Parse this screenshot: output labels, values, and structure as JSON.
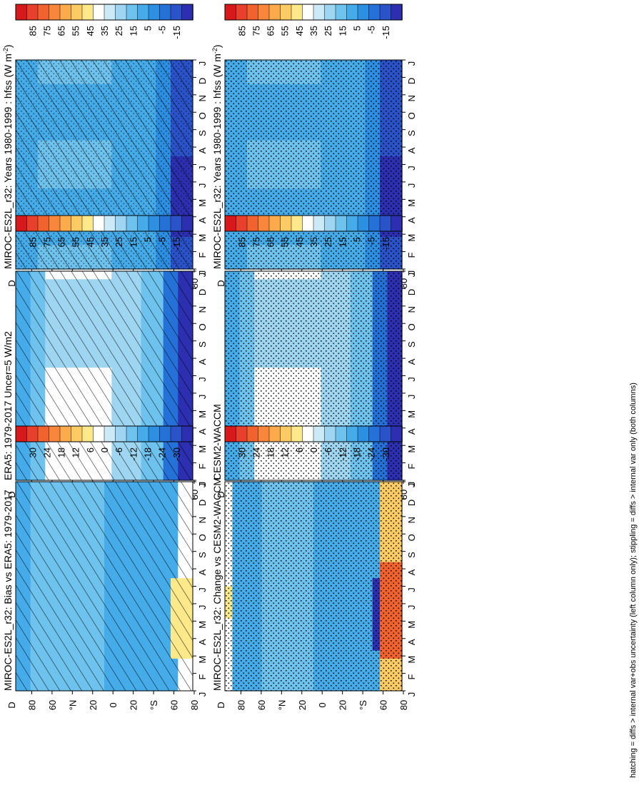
{
  "chart_data": [
    {
      "type": "heatmap",
      "title": "MIROC-ES2L_r32: Years 1980-1999 : hfss (W m",
      "title_sup": "-2",
      "title_close": ")",
      "x_ticks": [
        "J",
        "F",
        "M",
        "A",
        "M",
        "J",
        "J",
        "A",
        "S",
        "O",
        "N",
        "D",
        "J"
      ],
      "y_ticks": [
        "D",
        "80",
        "60",
        "°N",
        "20",
        "0",
        "20",
        "°S",
        "60",
        "80"
      ],
      "colorbar": {
        "labels": [
          "85",
          "75",
          "65",
          "55",
          "45",
          "35",
          "25",
          "15",
          "5",
          "-5",
          "-15"
        ],
        "colors": [
          "#d7191c",
          "#e8402c",
          "#f2622f",
          "#f9873b",
          "#fbaa4c",
          "#fdcb63",
          "#fde98a",
          "#ffffff",
          "#cbe9f7",
          "#9ed6f2",
          "#6ec2ee",
          "#45abe9",
          "#2d8fe2",
          "#2471d8",
          "#2a52c9",
          "#2b2fb0"
        ]
      },
      "overlay": "hatch+stipple",
      "field": "model"
    },
    {
      "type": "heatmap",
      "title": "MIROC-ES2L_r32: Years 1980-1999 : hfss (W m",
      "title_sup": "-2",
      "title_close": ")",
      "x_ticks": [
        "J",
        "F",
        "M",
        "A",
        "M",
        "J",
        "J",
        "A",
        "S",
        "O",
        "N",
        "D",
        "J"
      ],
      "y_ticks": [
        "D",
        "80",
        "60",
        "°N",
        "20",
        "0",
        "20",
        "°S",
        "60",
        "80"
      ],
      "colorbar": {
        "labels": [
          "85",
          "75",
          "65",
          "55",
          "45",
          "35",
          "25",
          "15",
          "5",
          "-5",
          "-15"
        ],
        "colors": [
          "#d7191c",
          "#e8402c",
          "#f2622f",
          "#f9873b",
          "#fbaa4c",
          "#fdcb63",
          "#fde98a",
          "#ffffff",
          "#cbe9f7",
          "#9ed6f2",
          "#6ec2ee",
          "#45abe9",
          "#2d8fe2",
          "#2471d8",
          "#2a52c9",
          "#2b2fb0"
        ]
      },
      "overlay": "stipple",
      "field": "model"
    },
    {
      "type": "heatmap",
      "title": "ERA5: 1979-2017 Uncer=5 W/m2",
      "title_sup": "",
      "title_close": "",
      "x_ticks": [
        "J",
        "F",
        "M",
        "A",
        "M",
        "J",
        "J",
        "A",
        "S",
        "O",
        "N",
        "D",
        "J"
      ],
      "y_ticks": [
        "D",
        "80",
        "60",
        "°N",
        "20",
        "0",
        "20",
        "°S",
        "60",
        "80"
      ],
      "colorbar": {
        "labels": [
          "85",
          "75",
          "65",
          "55",
          "45",
          "35",
          "25",
          "15",
          "5",
          "-5",
          "-15"
        ],
        "colors": [
          "#d7191c",
          "#e8402c",
          "#f2622f",
          "#f9873b",
          "#fbaa4c",
          "#fdcb63",
          "#fde98a",
          "#ffffff",
          "#cbe9f7",
          "#9ed6f2",
          "#6ec2ee",
          "#45abe9",
          "#2d8fe2",
          "#2471d8",
          "#2a52c9",
          "#2b2fb0"
        ]
      },
      "overlay": "hatch",
      "field": "obs"
    },
    {
      "type": "heatmap",
      "title": "CESM2-WACCM",
      "title_sup": "",
      "title_close": "",
      "x_ticks": [
        "J",
        "F",
        "M",
        "A",
        "M",
        "J",
        "J",
        "A",
        "S",
        "O",
        "N",
        "D",
        "J"
      ],
      "y_ticks": [
        "D",
        "80",
        "60",
        "°N",
        "20",
        "0",
        "20",
        "°S",
        "60",
        "80"
      ],
      "colorbar": {
        "labels": [
          "85",
          "75",
          "65",
          "55",
          "45",
          "35",
          "25",
          "15",
          "5",
          "-5",
          "-15"
        ],
        "colors": [
          "#d7191c",
          "#e8402c",
          "#f2622f",
          "#f9873b",
          "#fbaa4c",
          "#fdcb63",
          "#fde98a",
          "#ffffff",
          "#cbe9f7",
          "#9ed6f2",
          "#6ec2ee",
          "#45abe9",
          "#2d8fe2",
          "#2471d8",
          "#2a52c9",
          "#2b2fb0"
        ]
      },
      "overlay": "stipple",
      "field": "obs"
    },
    {
      "type": "heatmap",
      "title": "MIROC-ES2L_r32: Bias vs ERA5: 1979-2017",
      "title_sup": "",
      "title_close": "",
      "x_ticks": [
        "J",
        "F",
        "M",
        "A",
        "M",
        "J",
        "J",
        "A",
        "S",
        "O",
        "N",
        "D",
        "J"
      ],
      "y_ticks": [
        "D",
        "80",
        "60",
        "°N",
        "20",
        "0",
        "20",
        "°S",
        "60",
        "80"
      ],
      "colorbar": {
        "labels": [
          "30",
          "24",
          "18",
          "12",
          "6",
          "0",
          "-6",
          "-12",
          "-18",
          "-24",
          "-30"
        ],
        "colors": [
          "#d7191c",
          "#e8402c",
          "#f2622f",
          "#f9873b",
          "#fbaa4c",
          "#fdcb63",
          "#fde98a",
          "#ffffff",
          "#cbe9f7",
          "#9ed6f2",
          "#6ec2ee",
          "#45abe9",
          "#2d8fe2",
          "#2471d8",
          "#2a52c9",
          "#2b2fb0"
        ]
      },
      "overlay": "hatch",
      "field": "diff"
    },
    {
      "type": "heatmap",
      "title": "MIROC-ES2L_r32: Change vs CESM2-WACCM",
      "title_sup": "",
      "title_close": "",
      "x_ticks": [
        "J",
        "F",
        "M",
        "A",
        "M",
        "J",
        "J",
        "A",
        "S",
        "O",
        "N",
        "D",
        "J"
      ],
      "y_ticks": [
        "D",
        "80",
        "60",
        "°N",
        "20",
        "0",
        "20",
        "°S",
        "60",
        "80"
      ],
      "colorbar": {
        "labels": [
          "30",
          "24",
          "18",
          "12",
          "6",
          "0",
          "-6",
          "-12",
          "-18",
          "-24",
          "-30"
        ],
        "colors": [
          "#d7191c",
          "#e8402c",
          "#f2622f",
          "#f9873b",
          "#fbaa4c",
          "#fdcb63",
          "#fde98a",
          "#ffffff",
          "#cbe9f7",
          "#9ed6f2",
          "#6ec2ee",
          "#45abe9",
          "#2d8fe2",
          "#2471d8",
          "#2a52c9",
          "#2b2fb0"
        ]
      },
      "overlay": "stipple",
      "field": "diff2"
    }
  ],
  "footnote": "hatching = diffs > internal var+obs uncertainty (left column only); stippling = diffs > internal var only (both columns)"
}
